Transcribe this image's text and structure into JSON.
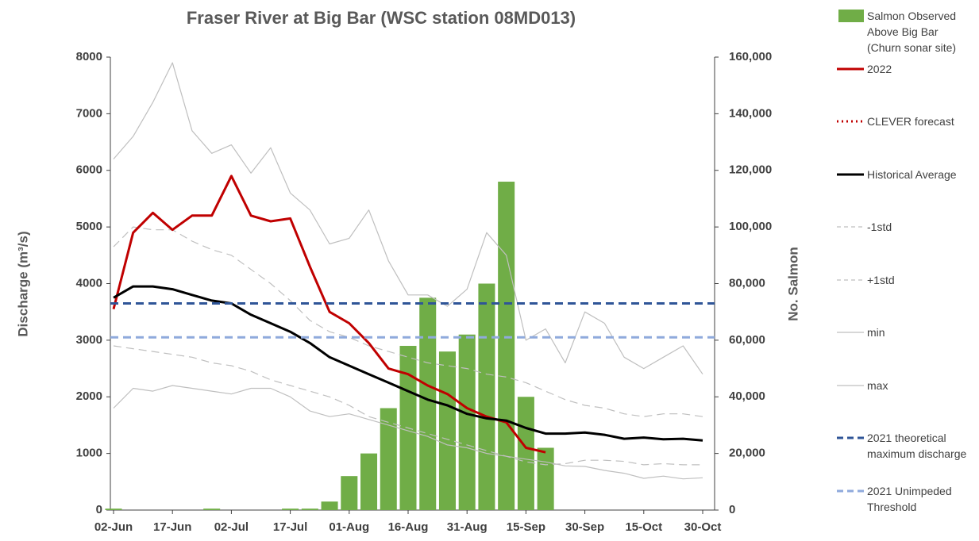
{
  "chart_data": {
    "type": "combo",
    "title": "Fraser River at Big Bar (WSC station 08MD013)",
    "y_label": "Discharge (m³/s)",
    "y2_label": "No. Salmon",
    "categories": [
      "02-Jun",
      null,
      null,
      "17-Jun",
      null,
      null,
      "02-Jul",
      null,
      null,
      "17-Jul",
      null,
      null,
      "01-Aug",
      null,
      null,
      "16-Aug",
      null,
      null,
      "31-Aug",
      null,
      null,
      "15-Sep",
      null,
      null,
      "30-Sep",
      null,
      null,
      "15-Oct",
      null,
      null,
      "30-Oct"
    ],
    "ylim": [
      0,
      8000
    ],
    "yticks": [
      0,
      1000,
      2000,
      3000,
      4000,
      5000,
      6000,
      7000,
      8000
    ],
    "y2lim": [
      0,
      160000
    ],
    "y2ticks": [
      0,
      {
        "value": 20000,
        "label": "20,000"
      },
      {
        "value": 40000,
        "label": "40,000"
      },
      {
        "value": 60000,
        "label": "60,000"
      },
      {
        "value": 80000,
        "label": "80,000"
      },
      {
        "value": 100000,
        "label": "100,000"
      },
      {
        "value": 120000,
        "label": "120,000"
      },
      {
        "value": 140000,
        "label": "140,000"
      },
      {
        "value": 160000,
        "label": "160,000"
      }
    ],
    "series": [
      {
        "name": "Salmon Observed Above Big Bar (Churn sonar site)",
        "type": "bar",
        "axis": "y2",
        "color": "#70ad47",
        "values": [
          500,
          0,
          0,
          0,
          0,
          500,
          0,
          0,
          0,
          500,
          500,
          3000,
          12000,
          20000,
          36000,
          58000,
          75000,
          56000,
          62000,
          80000,
          116000,
          40000,
          22000,
          null,
          null,
          null,
          null,
          null,
          null,
          null,
          null
        ]
      },
      {
        "name": "2022",
        "type": "line",
        "style": "solid",
        "width": 3,
        "color": "#c00000",
        "values": [
          3550,
          4900,
          5250,
          4950,
          5200,
          5200,
          5900,
          5200,
          5100,
          5150,
          4300,
          3500,
          3300,
          2950,
          2500,
          2400,
          2200,
          2050,
          1800,
          1650,
          1550,
          1100,
          1020,
          null,
          null,
          null,
          null,
          null,
          null,
          null,
          null
        ]
      },
      {
        "name": "CLEVER forecast",
        "type": "line",
        "style": "dotted",
        "width": 3,
        "color": "#c00000",
        "values": [
          null,
          null,
          null,
          null,
          null,
          null,
          null,
          null,
          null,
          null,
          null,
          null,
          null,
          null,
          null,
          null,
          null,
          null,
          null,
          null,
          null,
          null,
          null,
          null,
          null,
          null,
          null,
          null,
          null,
          null,
          null
        ]
      },
      {
        "name": "Historical Average",
        "type": "line",
        "style": "solid",
        "width": 3,
        "color": "#000000",
        "values": [
          3750,
          3950,
          3950,
          3900,
          3800,
          3700,
          3650,
          3450,
          3300,
          3150,
          2950,
          2700,
          2550,
          2400,
          2250,
          2100,
          1950,
          1850,
          1700,
          1620,
          1580,
          1450,
          1350,
          1350,
          1370,
          1330,
          1260,
          1280,
          1250,
          1260,
          1230
        ]
      },
      {
        "name": "-1std",
        "type": "line",
        "style": "dashed",
        "width": 1.2,
        "color": "#bfbfbf",
        "values": [
          2900,
          2850,
          2800,
          2750,
          2700,
          2600,
          2550,
          2450,
          2300,
          2200,
          2100,
          2000,
          1850,
          1650,
          1550,
          1450,
          1350,
          1250,
          1150,
          1050,
          950,
          850,
          800,
          820,
          880,
          880,
          860,
          800,
          820,
          800,
          800
        ]
      },
      {
        "name": "+1std",
        "type": "line",
        "style": "dashed",
        "width": 1.2,
        "color": "#bfbfbf",
        "values": [
          4650,
          5000,
          4950,
          4950,
          4750,
          4600,
          4500,
          4250,
          4000,
          3700,
          3350,
          3150,
          3050,
          2900,
          2800,
          2700,
          2600,
          2550,
          2500,
          2400,
          2350,
          2250,
          2100,
          1950,
          1850,
          1800,
          1700,
          1650,
          1700,
          1700,
          1650
        ]
      },
      {
        "name": "min",
        "type": "line",
        "style": "solid",
        "width": 1.2,
        "color": "#bfbfbf",
        "values": [
          1800,
          2150,
          2100,
          2200,
          2150,
          2100,
          2050,
          2150,
          2150,
          2000,
          1750,
          1650,
          1700,
          1600,
          1500,
          1400,
          1300,
          1150,
          1100,
          1000,
          950,
          900,
          850,
          780,
          770,
          700,
          650,
          560,
          600,
          550,
          570
        ]
      },
      {
        "name": "max",
        "type": "line",
        "style": "solid",
        "width": 1.2,
        "color": "#bfbfbf",
        "values": [
          6200,
          6600,
          7200,
          7900,
          6700,
          6300,
          6450,
          5950,
          6400,
          5600,
          5300,
          4700,
          4800,
          5300,
          4400,
          3800,
          3800,
          3600,
          3900,
          4900,
          4500,
          3000,
          3200,
          2600,
          3500,
          3300,
          2700,
          2500,
          2700,
          2900,
          2400
        ]
      },
      {
        "name": "2021 theoretical maximum discharge",
        "type": "hline",
        "style": "dashed",
        "width": 3,
        "color": "#2f5597",
        "value": 3650
      },
      {
        "name": "2021 Unimpeded Threshold",
        "type": "hline",
        "style": "dashed",
        "width": 3,
        "color": "#8faadc",
        "value": 3050
      }
    ]
  }
}
